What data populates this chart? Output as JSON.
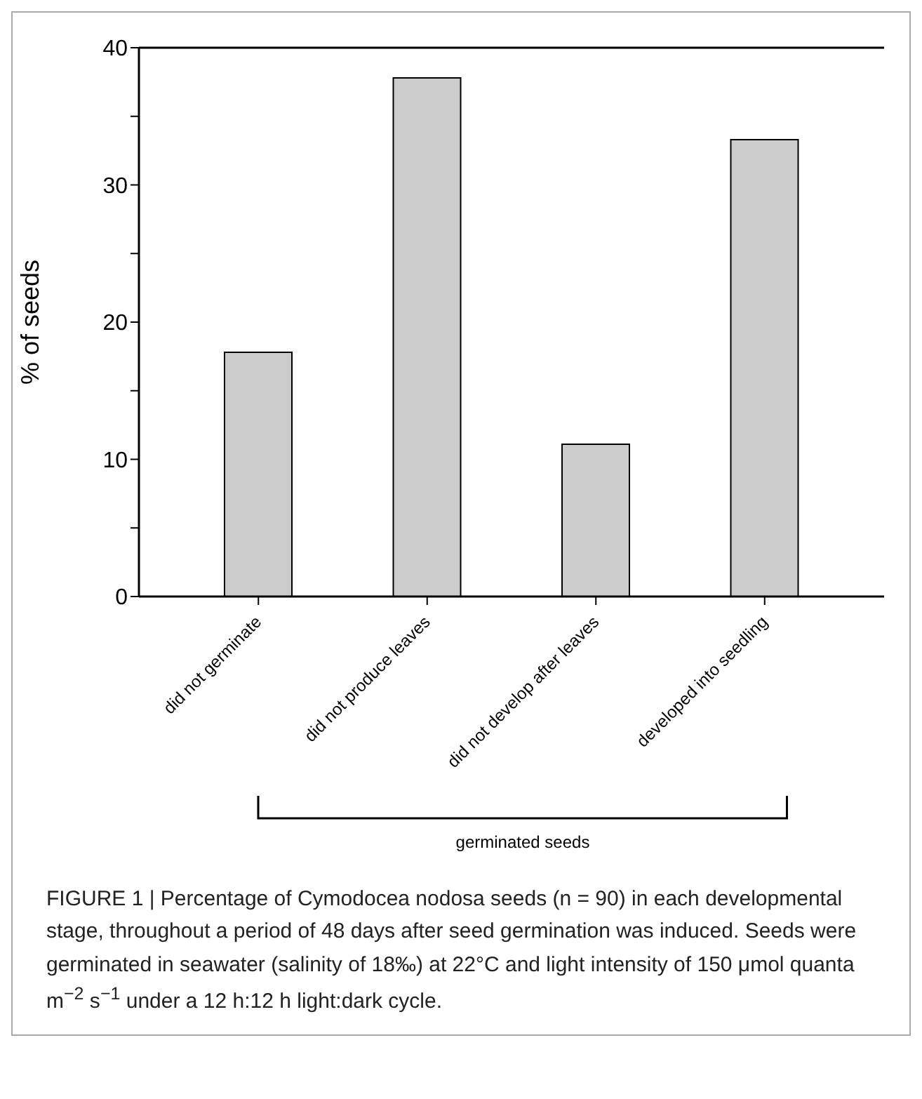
{
  "chart_data": {
    "type": "bar",
    "ylabel": "% of seeds",
    "categories": [
      "did not germinate",
      "did not produce leaves",
      "did not develop after leaves",
      "developed into seedling"
    ],
    "values": [
      17.8,
      37.8,
      11.1,
      33.3
    ],
    "color": "#cccccc",
    "ylim": [
      0,
      40
    ],
    "yticks": [
      0,
      {
        "value": 5,
        "label": null
      },
      10,
      {
        "value": 15,
        "label": null
      },
      20,
      {
        "value": 25,
        "label": null
      },
      30,
      {
        "value": 35,
        "label": null
      },
      40
    ],
    "grid": false,
    "legend": false,
    "annotations": [
      "germinated seeds",
      "FIGURE 1 | Percentage of Cymodocea nodosa seeds (n = 90) in each developmental stage, throughout a period of 48 days after seed germination was induced. Seeds were germinated in seawater (salinity of 18‰) at 22°C and light intensity of 150 μmol quanta m$^{−2}$ s$^{−1}$ under a 12 h:12 h light:dark cycle."
    ]
  }
}
